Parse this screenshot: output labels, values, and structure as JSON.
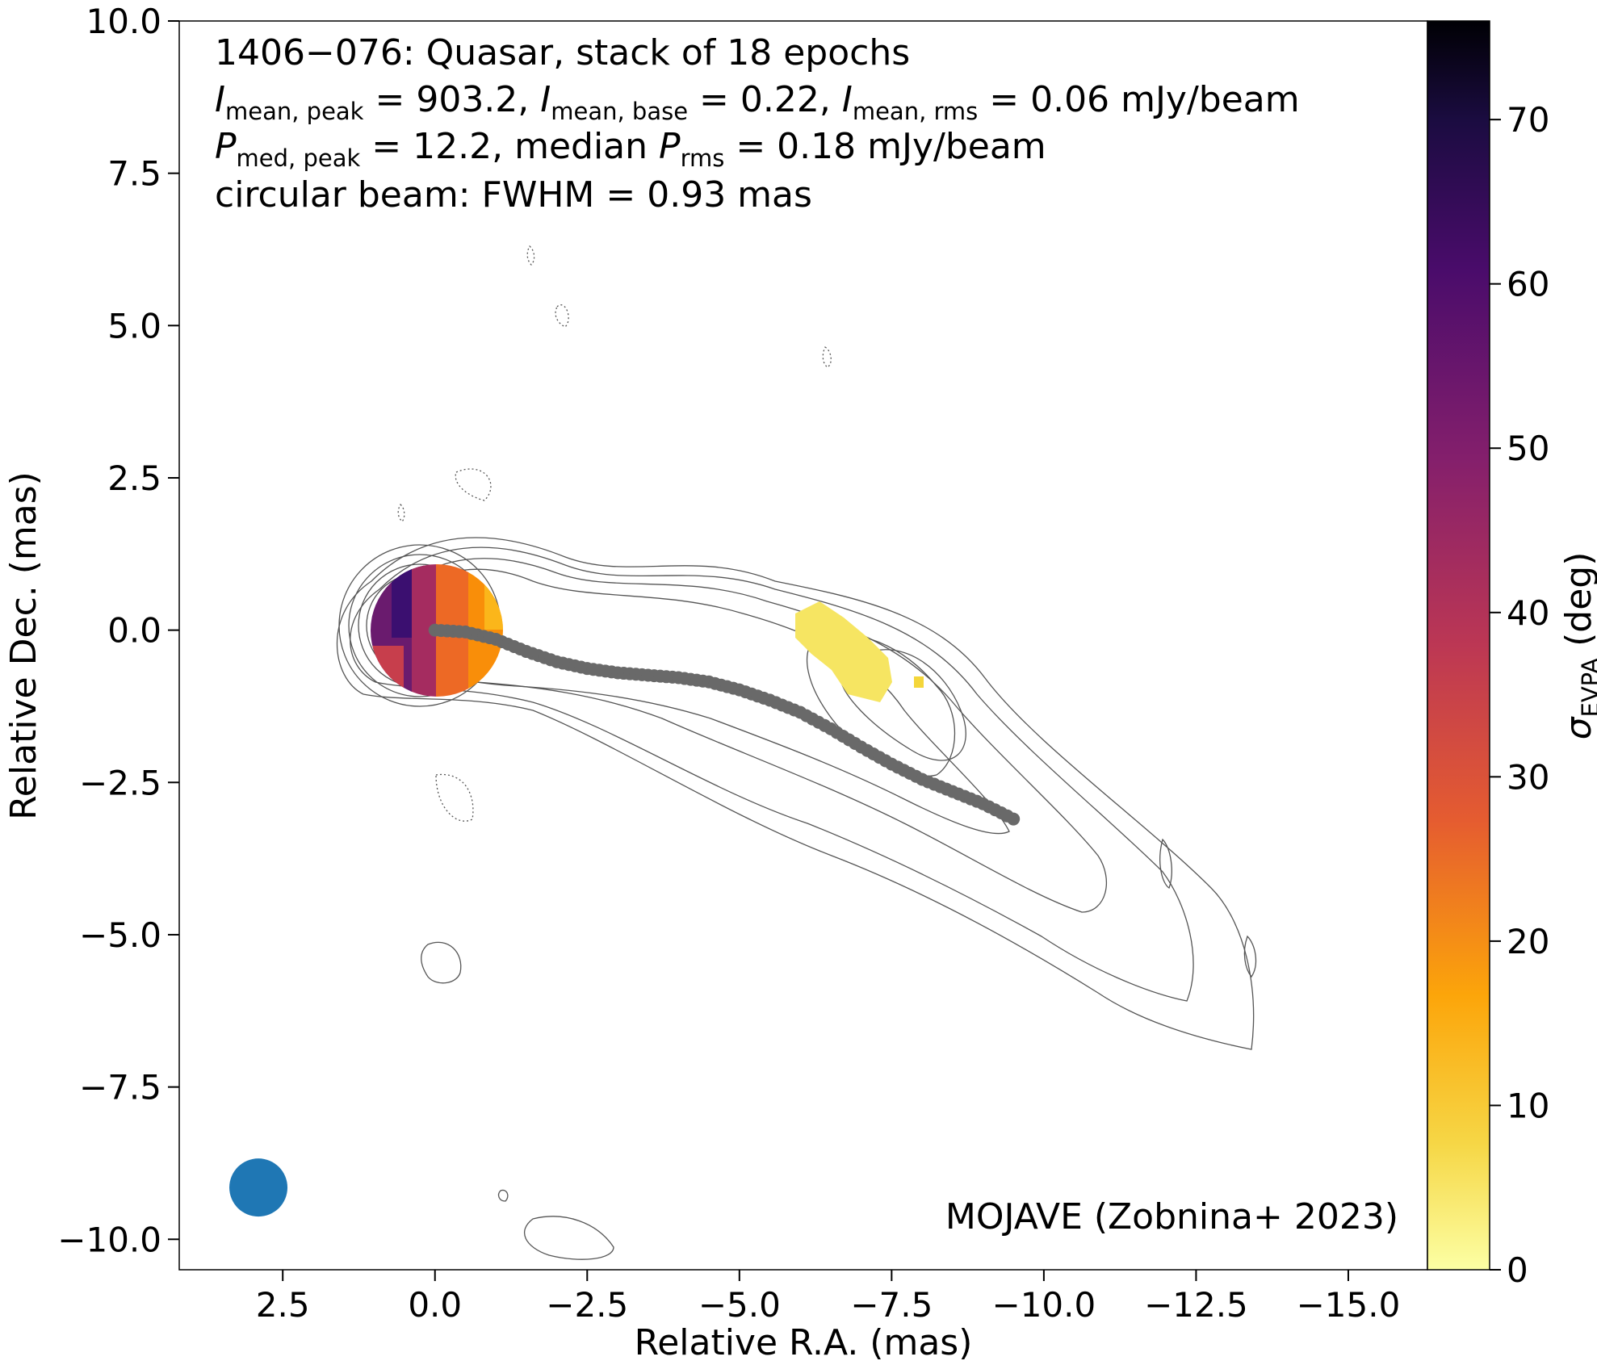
{
  "chart_data": {
    "type": "heatmap",
    "title_lines": {
      "line1": "1406−076: Quasar, stack of 18 epochs",
      "imean_peak_sub": "mean, peak",
      "imean_peak_val": " = 903.2, ",
      "imean_base_sub": "mean, base",
      "imean_base_val": " = 0.22, ",
      "imean_rms_sub": "mean, rms",
      "imean_rms_val": " = 0.06 mJy/beam",
      "pmed_peak_sub": "med, peak",
      "pmed_peak_val": " = 12.2, median ",
      "prms_sub": "rms",
      "prms_val": " = 0.18 mJy/beam",
      "line4": "circular beam: FWHM = 0.93 mas",
      "i_symbol": "I",
      "p_symbol": "P"
    },
    "xlabel": "Relative R.A. (mas)",
    "ylabel": "Relative Dec. (mas)",
    "xlim": [
      4.2,
      -16.3
    ],
    "ylim": [
      -10.5,
      10.0
    ],
    "x_ticks": [
      2.5,
      0.0,
      -2.5,
      -5.0,
      -7.5,
      -10.0,
      -12.5,
      -15.0
    ],
    "x_tick_labels": [
      "2.5",
      "0.0",
      "−2.5",
      "−5.0",
      "−7.5",
      "−10.0",
      "−12.5",
      "−15.0"
    ],
    "y_ticks": [
      10.0,
      7.5,
      5.0,
      2.5,
      0.0,
      -2.5,
      -5.0,
      -7.5,
      -10.0
    ],
    "y_tick_labels": [
      "10.0",
      "7.5",
      "5.0",
      "2.5",
      "0.0",
      "−2.5",
      "−5.0",
      "−7.5",
      "−10.0"
    ],
    "colorbar": {
      "label_symbol": "σ",
      "label_sub": "EVPA",
      "label_unit": " (deg)",
      "range": [
        0,
        76
      ],
      "ticks": [
        0,
        10,
        20,
        30,
        40,
        50,
        60,
        70
      ],
      "tick_labels": [
        "0",
        "10",
        "20",
        "30",
        "40",
        "50",
        "60",
        "70"
      ],
      "colormap": "inferno_r"
    },
    "ridgeline": {
      "color": "#696969",
      "points": [
        [
          0.0,
          0.0
        ],
        [
          -0.5,
          -0.03
        ],
        [
          -1.0,
          -0.15
        ],
        [
          -1.5,
          -0.35
        ],
        [
          -2.0,
          -0.52
        ],
        [
          -2.5,
          -0.63
        ],
        [
          -3.0,
          -0.7
        ],
        [
          -3.5,
          -0.74
        ],
        [
          -4.0,
          -0.78
        ],
        [
          -4.5,
          -0.85
        ],
        [
          -5.0,
          -0.98
        ],
        [
          -5.5,
          -1.15
        ],
        [
          -6.0,
          -1.35
        ],
        [
          -6.5,
          -1.62
        ],
        [
          -7.0,
          -1.92
        ],
        [
          -7.5,
          -2.2
        ],
        [
          -8.0,
          -2.45
        ],
        [
          -8.5,
          -2.65
        ],
        [
          -9.0,
          -2.85
        ],
        [
          -9.5,
          -3.1
        ]
      ]
    },
    "beam": {
      "color": "#1f77b4",
      "center": [
        2.9,
        -9.15
      ],
      "fwhm": 0.93
    },
    "credit": "MOJAVE (Zobnina+ 2023)"
  }
}
